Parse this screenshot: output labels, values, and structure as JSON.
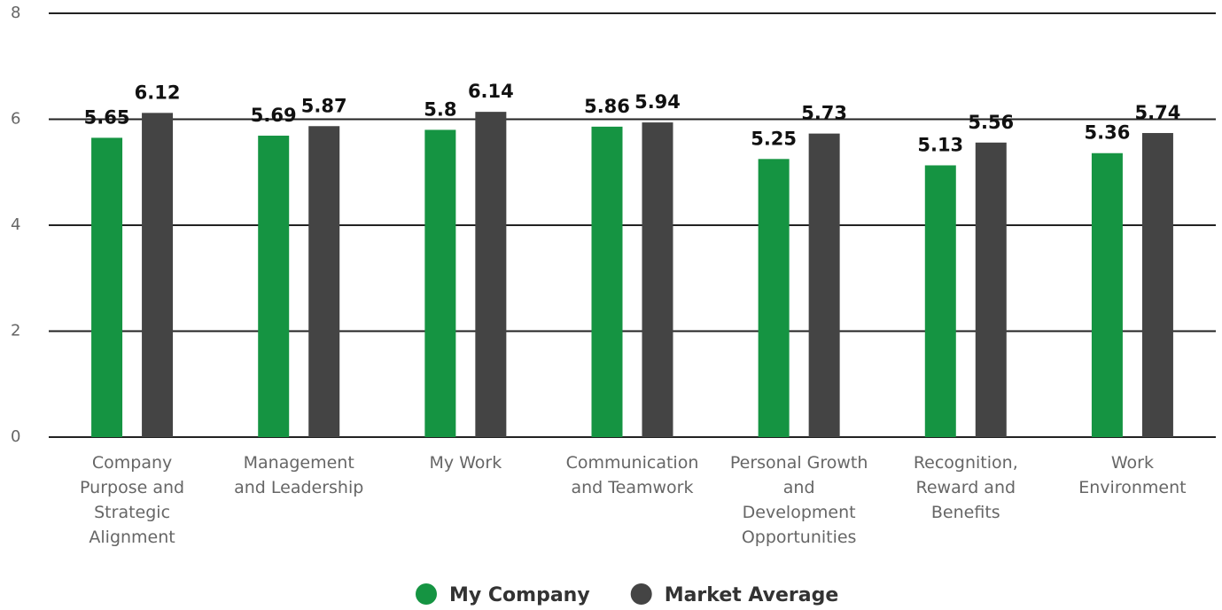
{
  "chart_data": {
    "type": "bar",
    "categories": [
      "Company Purpose and Strategic Alignment",
      "Management and Leadership",
      "My Work",
      "Communication and Teamwork",
      "Personal Growth and Development Opportunities",
      "Recognition, Reward and Benefits",
      "Work Environment"
    ],
    "series": [
      {
        "name": "My Company",
        "color": "#159442",
        "values": [
          5.65,
          5.69,
          5.8,
          5.86,
          5.25,
          5.13,
          5.36
        ]
      },
      {
        "name": "Market Average",
        "color": "#444444",
        "values": [
          6.12,
          5.87,
          6.14,
          5.94,
          5.73,
          5.56,
          5.74
        ]
      }
    ],
    "ylim": [
      0,
      8
    ],
    "yticks": [
      0,
      2,
      4,
      6,
      8
    ],
    "grid": true,
    "legend": "bottom"
  }
}
